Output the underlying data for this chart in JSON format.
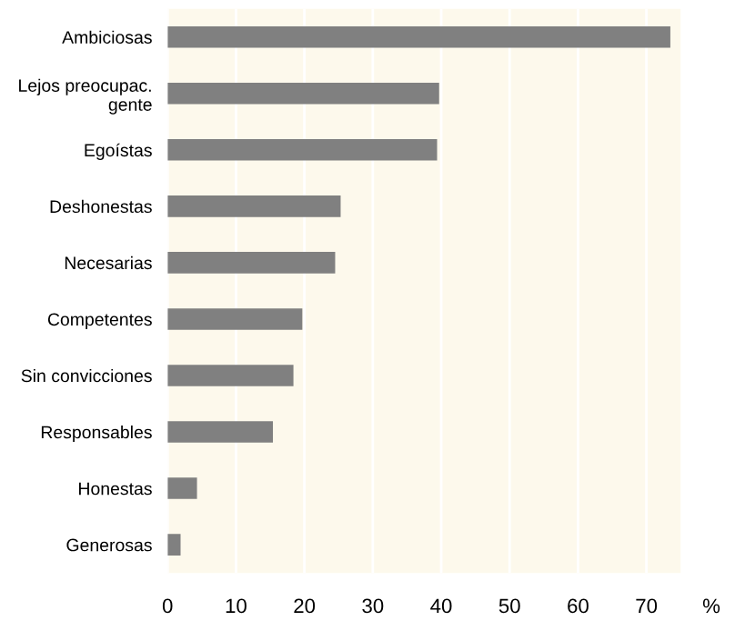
{
  "chart_data": {
    "type": "bar",
    "orientation": "horizontal",
    "xlabel": "%",
    "categories": [
      "Ambiciosas",
      "Lejos preocupac.\ngente",
      "Egoístas",
      "Deshonestas",
      "Necesarias",
      "Competentes",
      "Sin convicciones",
      "Responsables",
      "Honestas",
      "Generosas"
    ],
    "values": [
      73.5,
      39.7,
      39.4,
      25.3,
      24.5,
      19.7,
      18.4,
      15.4,
      4.3,
      1.9
    ],
    "color": "#808080",
    "xlim": [
      0,
      75
    ],
    "xticks": [
      0,
      10,
      20,
      30,
      40,
      50,
      60,
      70
    ],
    "grid": "x"
  }
}
